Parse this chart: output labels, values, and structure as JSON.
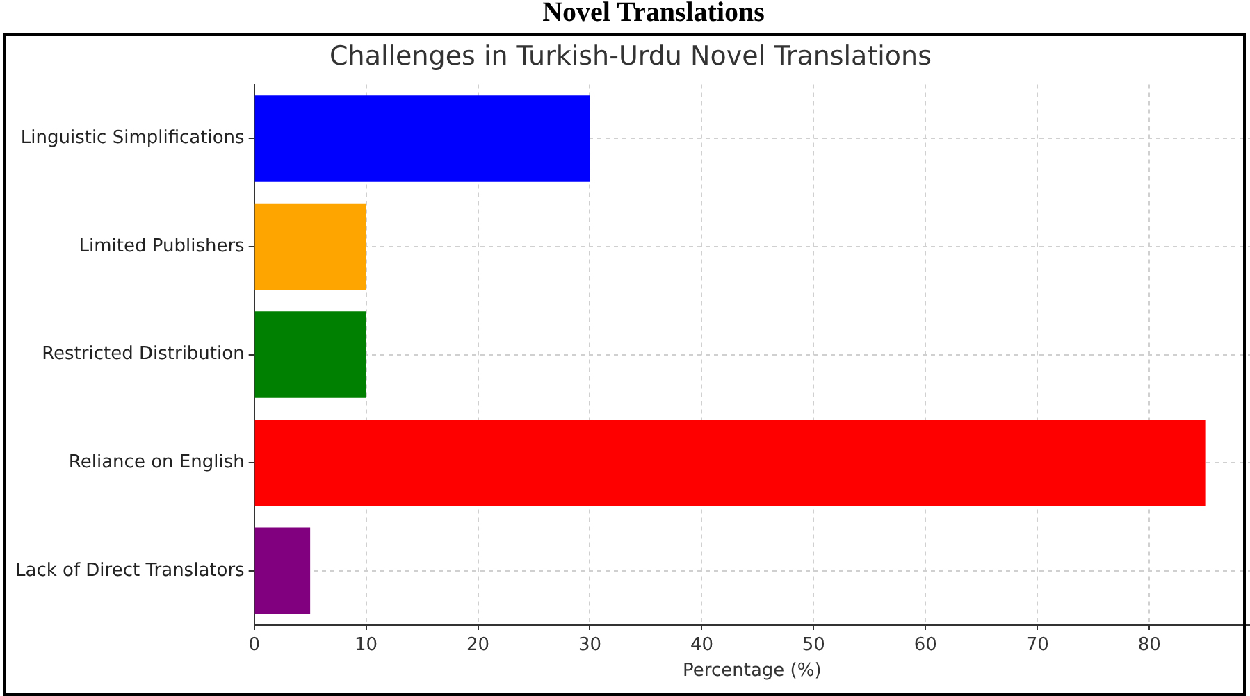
{
  "chart_data": {
    "type": "bar",
    "orientation": "horizontal",
    "title": "Challenges in Turkish-Urdu Novel Translations",
    "xlabel": "Percentage (%)",
    "annotations": [
      "Novel Translations"
    ],
    "categories": [
      "Linguistic Simplifications",
      "Limited Publishers",
      "Restricted Distribution",
      "Reliance on English",
      "Lack of Direct Translators"
    ],
    "values": [
      30,
      10,
      10,
      85,
      5
    ],
    "colors": [
      "#0000ff",
      "#ffa500",
      "#008000",
      "#ff0000",
      "#800080"
    ],
    "xlim": [
      0,
      89
    ],
    "xticks": [
      0,
      10,
      20,
      30,
      40,
      50,
      60,
      70,
      80
    ],
    "grid": true,
    "legend": false
  }
}
